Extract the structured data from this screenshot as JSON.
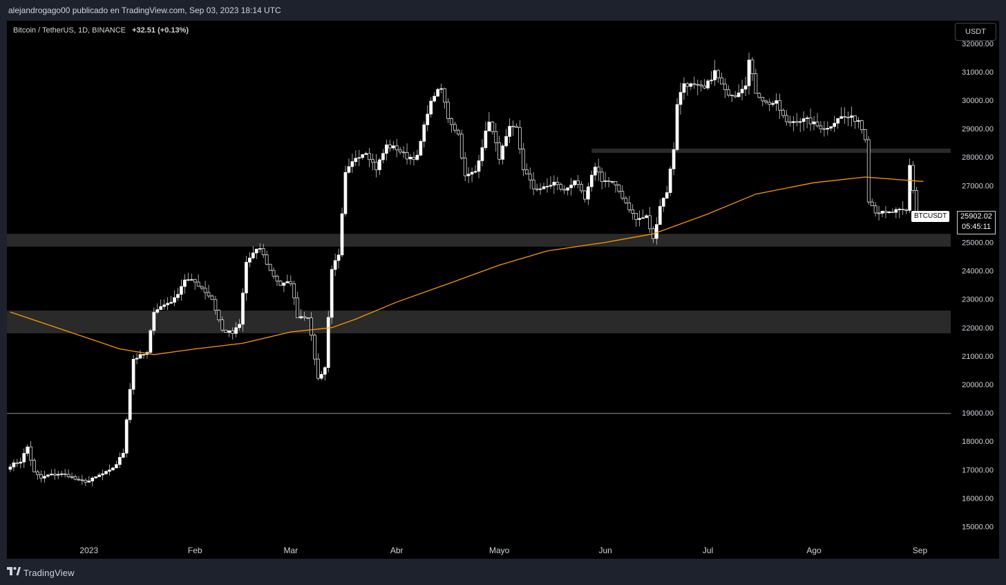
{
  "header": {
    "published": "alejandrogago00 publicado en TradingView.com, Sep 03, 2023 18:14 UTC"
  },
  "legend": {
    "symbol": "Bitcoin / TetherUS, 1D, BINANCE",
    "change": "+32.51 (+0.13%)"
  },
  "currency_button": "USDT",
  "footer": {
    "brand": "TradingView"
  },
  "price_tag": {
    "symbol": "BTCUSDT",
    "price": "25902.02",
    "countdown": "05:45:11"
  },
  "colors": {
    "background": "#000000",
    "candle": "#ffffff",
    "ma_line": "#ff9800",
    "zone": "#2a2a2a"
  },
  "chart_data": {
    "type": "candlestick",
    "title": "",
    "y_axis": {
      "min": 14500,
      "max": 32800,
      "ticks": [
        32000,
        31000,
        30000,
        29000,
        28000,
        27000,
        26000,
        25000,
        24000,
        23000,
        22000,
        21000,
        20000,
        19000,
        18000,
        17000,
        16000,
        15000
      ]
    },
    "x_axis": {
      "ticks": [
        {
          "label": "2023",
          "date": "2023-01-01"
        },
        {
          "label": "Feb",
          "date": "2023-02-01"
        },
        {
          "label": "Mar",
          "date": "2023-03-01"
        },
        {
          "label": "Abr",
          "date": "2023-04-01"
        },
        {
          "label": "Mayo",
          "date": "2023-05-01"
        },
        {
          "label": "Jun",
          "date": "2023-06-01"
        },
        {
          "label": "Jul",
          "date": "2023-07-01"
        },
        {
          "label": "Ago",
          "date": "2023-08-01"
        },
        {
          "label": "Sep",
          "date": "2023-09-01"
        }
      ]
    },
    "series": [
      {
        "kind": "price",
        "points": [
          [
            "2022-12-09",
            17150
          ],
          [
            "2022-12-12",
            17300
          ],
          [
            "2022-12-14",
            17800
          ],
          [
            "2022-12-16",
            16900
          ],
          [
            "2022-12-18",
            16700
          ],
          [
            "2022-12-20",
            16800
          ],
          [
            "2022-12-23",
            16850
          ],
          [
            "2022-12-26",
            16800
          ],
          [
            "2022-12-29",
            16600
          ],
          [
            "2023-01-01",
            16600
          ],
          [
            "2023-01-04",
            16800
          ],
          [
            "2023-01-07",
            16950
          ],
          [
            "2023-01-09",
            17200
          ],
          [
            "2023-01-11",
            17600
          ],
          [
            "2023-01-12",
            18800
          ],
          [
            "2023-01-14",
            20900
          ],
          [
            "2023-01-16",
            21000
          ],
          [
            "2023-01-18",
            21100
          ],
          [
            "2023-01-20",
            22600
          ],
          [
            "2023-01-23",
            22800
          ],
          [
            "2023-01-26",
            23000
          ],
          [
            "2023-01-29",
            23700
          ],
          [
            "2023-02-01",
            23600
          ],
          [
            "2023-02-03",
            23400
          ],
          [
            "2023-02-06",
            23000
          ],
          [
            "2023-02-09",
            21900
          ],
          [
            "2023-02-12",
            21800
          ],
          [
            "2023-02-14",
            22100
          ],
          [
            "2023-02-16",
            24300
          ],
          [
            "2023-02-18",
            24600
          ],
          [
            "2023-02-20",
            24800
          ],
          [
            "2023-02-23",
            24000
          ],
          [
            "2023-02-26",
            23500
          ],
          [
            "2023-03-01",
            23600
          ],
          [
            "2023-03-03",
            22400
          ],
          [
            "2023-03-06",
            22400
          ],
          [
            "2023-03-09",
            20200
          ],
          [
            "2023-03-11",
            20600
          ],
          [
            "2023-03-13",
            24100
          ],
          [
            "2023-03-15",
            24500
          ],
          [
            "2023-03-17",
            27400
          ],
          [
            "2023-03-20",
            28000
          ],
          [
            "2023-03-23",
            28200
          ],
          [
            "2023-03-26",
            27600
          ],
          [
            "2023-03-29",
            28400
          ],
          [
            "2023-04-01",
            28300
          ],
          [
            "2023-04-04",
            28000
          ],
          [
            "2023-04-07",
            28000
          ],
          [
            "2023-04-10",
            29600
          ],
          [
            "2023-04-12",
            30200
          ],
          [
            "2023-04-14",
            30400
          ],
          [
            "2023-04-16",
            29400
          ],
          [
            "2023-04-19",
            28800
          ],
          [
            "2023-04-21",
            27300
          ],
          [
            "2023-04-24",
            27500
          ],
          [
            "2023-04-26",
            28400
          ],
          [
            "2023-04-28",
            29300
          ],
          [
            "2023-05-01",
            28000
          ],
          [
            "2023-05-04",
            29000
          ],
          [
            "2023-05-06",
            29000
          ],
          [
            "2023-05-08",
            27600
          ],
          [
            "2023-05-11",
            26900
          ],
          [
            "2023-05-14",
            26900
          ],
          [
            "2023-05-17",
            27100
          ],
          [
            "2023-05-20",
            26800
          ],
          [
            "2023-05-23",
            27200
          ],
          [
            "2023-05-26",
            26500
          ],
          [
            "2023-05-29",
            27700
          ],
          [
            "2023-05-31",
            27200
          ],
          [
            "2023-06-03",
            27100
          ],
          [
            "2023-06-05",
            26800
          ],
          [
            "2023-06-07",
            26400
          ],
          [
            "2023-06-10",
            25800
          ],
          [
            "2023-06-13",
            25900
          ],
          [
            "2023-06-15",
            25100
          ],
          [
            "2023-06-17",
            26300
          ],
          [
            "2023-06-19",
            26800
          ],
          [
            "2023-06-21",
            28300
          ],
          [
            "2023-06-22",
            29900
          ],
          [
            "2023-06-24",
            30600
          ],
          [
            "2023-06-27",
            30500
          ],
          [
            "2023-06-30",
            30400
          ],
          [
            "2023-07-03",
            31000
          ],
          [
            "2023-07-06",
            30300
          ],
          [
            "2023-07-09",
            30200
          ],
          [
            "2023-07-12",
            30600
          ],
          [
            "2023-07-13",
            31400
          ],
          [
            "2023-07-15",
            30300
          ],
          [
            "2023-07-18",
            29900
          ],
          [
            "2023-07-21",
            29900
          ],
          [
            "2023-07-24",
            29200
          ],
          [
            "2023-07-27",
            29300
          ],
          [
            "2023-07-30",
            29300
          ],
          [
            "2023-08-02",
            29100
          ],
          [
            "2023-08-05",
            29000
          ],
          [
            "2023-08-08",
            29400
          ],
          [
            "2023-08-11",
            29400
          ],
          [
            "2023-08-14",
            29300
          ],
          [
            "2023-08-16",
            28700
          ],
          [
            "2023-08-17",
            26500
          ],
          [
            "2023-08-19",
            26100
          ],
          [
            "2023-08-22",
            26000
          ],
          [
            "2023-08-25",
            26100
          ],
          [
            "2023-08-28",
            26100
          ],
          [
            "2023-08-29",
            27700
          ],
          [
            "2023-08-31",
            26000
          ],
          [
            "2023-09-01",
            25902
          ]
        ]
      },
      {
        "kind": "moving_average",
        "points": [
          [
            "2022-12-09",
            22550
          ],
          [
            "2022-12-25",
            21900
          ],
          [
            "2023-01-10",
            21250
          ],
          [
            "2023-01-20",
            21050
          ],
          [
            "2023-02-01",
            21250
          ],
          [
            "2023-02-15",
            21450
          ],
          [
            "2023-03-01",
            21850
          ],
          [
            "2023-03-13",
            22000
          ],
          [
            "2023-03-20",
            22300
          ],
          [
            "2023-04-01",
            22900
          ],
          [
            "2023-04-15",
            23500
          ],
          [
            "2023-05-01",
            24200
          ],
          [
            "2023-05-15",
            24700
          ],
          [
            "2023-06-01",
            25000
          ],
          [
            "2023-06-15",
            25300
          ],
          [
            "2023-07-01",
            26000
          ],
          [
            "2023-07-15",
            26700
          ],
          [
            "2023-08-01",
            27100
          ],
          [
            "2023-08-16",
            27300
          ],
          [
            "2023-09-01",
            27150
          ],
          [
            "2023-09-02",
            27150
          ]
        ]
      }
    ],
    "zones": [
      {
        "from": 28150,
        "to": 28300,
        "start": "2023-05-28"
      },
      {
        "from": 24850,
        "to": 25300
      },
      {
        "from": 21800,
        "to": 22600
      }
    ],
    "levels": [
      18980
    ],
    "last_price": 25902.02
  }
}
